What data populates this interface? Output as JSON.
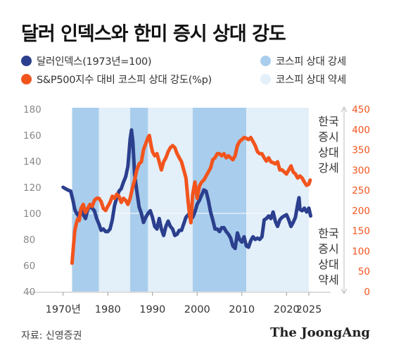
{
  "title": "달러 인덱스와 한미 증시 상대 강도",
  "legend": {
    "dollar_index": "달러인덱스(1973년=100)",
    "relative_strength": "S&P500지수 대비 코스피 상대 강도(%p)",
    "kospi_strong": "코스피 상대 강세",
    "kospi_weak": "코스피 상대 약세"
  },
  "right_annotation": {
    "top": [
      "한국",
      "증시",
      "상대",
      "강세"
    ],
    "bottom": [
      "한국",
      "증시",
      "상대",
      "약세"
    ]
  },
  "source": "자료: 신영증권",
  "brand": "The JoongAng",
  "colors": {
    "dollar_index": "#2b3f8e",
    "relative_strength": "#f2541d",
    "kospi_strong": "#a9cdec",
    "kospi_weak": "#e3eff9",
    "right_axis": "#f2541d",
    "left_axis": "#888888"
  },
  "chart_data": {
    "type": "line",
    "x_range": [
      1965,
      2028
    ],
    "x_ticks": [
      {
        "value": 1970,
        "label": "1970년"
      },
      {
        "value": 1980,
        "label": "1980"
      },
      {
        "value": 1990,
        "label": "1990"
      },
      {
        "value": 2000,
        "label": "2000"
      },
      {
        "value": 2010,
        "label": "2010"
      },
      {
        "value": 2020,
        "label": "2020"
      },
      {
        "value": 2025,
        "label": "2025"
      }
    ],
    "y_left": {
      "range": [
        40,
        180
      ],
      "ticks": [
        40,
        60,
        80,
        100,
        120,
        140,
        160,
        180
      ]
    },
    "y_right": {
      "range": [
        0,
        450
      ],
      "ticks": [
        0,
        50,
        100,
        150,
        200,
        250,
        300,
        350,
        400,
        450
      ]
    },
    "shaded_periods": [
      {
        "start": 1972,
        "end": 1978,
        "type": "kospi_strong"
      },
      {
        "start": 1978,
        "end": 1985,
        "type": "kospi_weak"
      },
      {
        "start": 1985,
        "end": 1989,
        "type": "kospi_strong"
      },
      {
        "start": 1989,
        "end": 1999,
        "type": "kospi_weak"
      },
      {
        "start": 1999,
        "end": 2011,
        "type": "kospi_strong"
      },
      {
        "start": 2011,
        "end": 2025,
        "type": "kospi_weak"
      }
    ],
    "series": [
      {
        "name": "달러인덱스(1973년=100)",
        "axis": "left",
        "points": [
          [
            1970.0,
            120
          ],
          [
            1971.0,
            118
          ],
          [
            1971.7,
            117
          ],
          [
            1972.2,
            110
          ],
          [
            1972.6,
            103
          ],
          [
            1973.0,
            100
          ],
          [
            1973.5,
            98
          ],
          [
            1974.0,
            103
          ],
          [
            1974.5,
            99
          ],
          [
            1975.0,
            96
          ],
          [
            1975.5,
            103
          ],
          [
            1976.0,
            105
          ],
          [
            1976.5,
            104
          ],
          [
            1977.0,
            102
          ],
          [
            1977.5,
            96
          ],
          [
            1978.0,
            92
          ],
          [
            1978.5,
            87
          ],
          [
            1979.0,
            88
          ],
          [
            1979.5,
            86
          ],
          [
            1980.0,
            86
          ],
          [
            1980.5,
            88
          ],
          [
            1981.0,
            95
          ],
          [
            1981.5,
            106
          ],
          [
            1982.0,
            112
          ],
          [
            1982.5,
            117
          ],
          [
            1983.0,
            119
          ],
          [
            1983.5,
            124
          ],
          [
            1984.0,
            128
          ],
          [
            1984.5,
            136
          ],
          [
            1985.0,
            157
          ],
          [
            1985.3,
            164
          ],
          [
            1985.6,
            155
          ],
          [
            1986.0,
            130
          ],
          [
            1986.5,
            117
          ],
          [
            1987.0,
            105
          ],
          [
            1987.5,
            100
          ],
          [
            1988.0,
            93
          ],
          [
            1988.5,
            97
          ],
          [
            1989.0,
            100
          ],
          [
            1989.5,
            102
          ],
          [
            1990.0,
            97
          ],
          [
            1990.5,
            90
          ],
          [
            1991.0,
            88
          ],
          [
            1991.5,
            96
          ],
          [
            1992.0,
            88
          ],
          [
            1992.5,
            83
          ],
          [
            1993.0,
            90
          ],
          [
            1993.5,
            94
          ],
          [
            1994.0,
            90
          ],
          [
            1994.5,
            88
          ],
          [
            1995.0,
            83
          ],
          [
            1995.5,
            84
          ],
          [
            1996.0,
            87
          ],
          [
            1996.5,
            87
          ],
          [
            1997.0,
            92
          ],
          [
            1997.5,
            97
          ],
          [
            1998.0,
            99
          ],
          [
            1998.5,
            98
          ],
          [
            1999.0,
            97
          ],
          [
            1999.5,
            101
          ],
          [
            2000.0,
            107
          ],
          [
            2000.5,
            110
          ],
          [
            2001.0,
            114
          ],
          [
            2001.5,
            118
          ],
          [
            2002.0,
            117
          ],
          [
            2002.5,
            110
          ],
          [
            2003.0,
            101
          ],
          [
            2003.5,
            95
          ],
          [
            2004.0,
            88
          ],
          [
            2004.5,
            88
          ],
          [
            2005.0,
            86
          ],
          [
            2005.5,
            89
          ],
          [
            2006.0,
            89
          ],
          [
            2006.5,
            86
          ],
          [
            2007.0,
            84
          ],
          [
            2007.5,
            81
          ],
          [
            2008.0,
            75
          ],
          [
            2008.5,
            73
          ],
          [
            2009.0,
            85
          ],
          [
            2009.5,
            80
          ],
          [
            2010.0,
            78
          ],
          [
            2010.5,
            82
          ],
          [
            2011.0,
            75
          ],
          [
            2011.5,
            74
          ],
          [
            2012.0,
            79
          ],
          [
            2012.5,
            82
          ],
          [
            2013.0,
            80
          ],
          [
            2013.5,
            81
          ],
          [
            2014.0,
            80
          ],
          [
            2014.5,
            82
          ],
          [
            2015.0,
            95
          ],
          [
            2015.5,
            96
          ],
          [
            2016.0,
            98
          ],
          [
            2016.5,
            96
          ],
          [
            2017.0,
            101
          ],
          [
            2017.5,
            94
          ],
          [
            2018.0,
            90
          ],
          [
            2018.5,
            95
          ],
          [
            2019.0,
            97
          ],
          [
            2019.5,
            98
          ],
          [
            2020.0,
            99
          ],
          [
            2020.5,
            95
          ],
          [
            2021.0,
            90
          ],
          [
            2021.5,
            93
          ],
          [
            2022.0,
            97
          ],
          [
            2022.5,
            107
          ],
          [
            2022.8,
            112
          ],
          [
            2023.0,
            103
          ],
          [
            2023.5,
            102
          ],
          [
            2024.0,
            104
          ],
          [
            2024.5,
            101
          ],
          [
            2025.0,
            104
          ],
          [
            2025.4,
            98
          ]
        ]
      },
      {
        "name": "S&P500지수 대비 코스피 상대 강도(%p)",
        "axis": "right",
        "points": [
          [
            1972.0,
            70
          ],
          [
            1972.3,
            110
          ],
          [
            1972.6,
            150
          ],
          [
            1973.0,
            170
          ],
          [
            1973.3,
            180
          ],
          [
            1973.6,
            175
          ],
          [
            1974.0,
            205
          ],
          [
            1974.5,
            215
          ],
          [
            1975.0,
            195
          ],
          [
            1975.5,
            205
          ],
          [
            1976.0,
            215
          ],
          [
            1976.5,
            210
          ],
          [
            1977.0,
            225
          ],
          [
            1977.5,
            230
          ],
          [
            1978.0,
            230
          ],
          [
            1978.5,
            222
          ],
          [
            1979.0,
            205
          ],
          [
            1979.5,
            200
          ],
          [
            1980.0,
            210
          ],
          [
            1980.5,
            220
          ],
          [
            1981.0,
            235
          ],
          [
            1981.5,
            230
          ],
          [
            1982.0,
            240
          ],
          [
            1982.5,
            235
          ],
          [
            1983.0,
            220
          ],
          [
            1983.5,
            230
          ],
          [
            1984.0,
            225
          ],
          [
            1984.5,
            215
          ],
          [
            1985.0,
            230
          ],
          [
            1985.5,
            255
          ],
          [
            1986.0,
            275
          ],
          [
            1986.5,
            300
          ],
          [
            1987.0,
            315
          ],
          [
            1987.5,
            320
          ],
          [
            1988.0,
            350
          ],
          [
            1988.5,
            365
          ],
          [
            1989.0,
            380
          ],
          [
            1989.3,
            385
          ],
          [
            1989.7,
            360
          ],
          [
            1990.0,
            345
          ],
          [
            1990.5,
            335
          ],
          [
            1991.0,
            340
          ],
          [
            1991.5,
            320
          ],
          [
            1992.0,
            300
          ],
          [
            1992.5,
            320
          ],
          [
            1993.0,
            330
          ],
          [
            1993.5,
            345
          ],
          [
            1994.0,
            355
          ],
          [
            1994.5,
            360
          ],
          [
            1995.0,
            355
          ],
          [
            1995.5,
            340
          ],
          [
            1996.0,
            330
          ],
          [
            1996.5,
            320
          ],
          [
            1997.0,
            300
          ],
          [
            1997.5,
            280
          ],
          [
            1998.0,
            220
          ],
          [
            1998.3,
            190
          ],
          [
            1998.6,
            170
          ],
          [
            1999.0,
            240
          ],
          [
            1999.5,
            270
          ],
          [
            2000.0,
            230
          ],
          [
            2000.5,
            260
          ],
          [
            2001.0,
            270
          ],
          [
            2001.5,
            275
          ],
          [
            2002.0,
            285
          ],
          [
            2002.5,
            295
          ],
          [
            2003.0,
            305
          ],
          [
            2003.5,
            325
          ],
          [
            2004.0,
            330
          ],
          [
            2004.5,
            340
          ],
          [
            2005.0,
            340
          ],
          [
            2005.5,
            335
          ],
          [
            2006.0,
            340
          ],
          [
            2006.5,
            330
          ],
          [
            2007.0,
            335
          ],
          [
            2007.5,
            330
          ],
          [
            2008.0,
            325
          ],
          [
            2008.5,
            335
          ],
          [
            2009.0,
            360
          ],
          [
            2009.5,
            370
          ],
          [
            2010.0,
            375
          ],
          [
            2010.5,
            380
          ],
          [
            2011.0,
            378
          ],
          [
            2011.5,
            375
          ],
          [
            2012.0,
            380
          ],
          [
            2012.5,
            370
          ],
          [
            2013.0,
            360
          ],
          [
            2013.5,
            345
          ],
          [
            2014.0,
            340
          ],
          [
            2014.5,
            340
          ],
          [
            2015.0,
            330
          ],
          [
            2015.5,
            322
          ],
          [
            2016.0,
            330
          ],
          [
            2016.5,
            320
          ],
          [
            2017.0,
            318
          ],
          [
            2017.5,
            315
          ],
          [
            2018.0,
            320
          ],
          [
            2018.5,
            300
          ],
          [
            2019.0,
            300
          ],
          [
            2019.5,
            295
          ],
          [
            2020.0,
            290
          ],
          [
            2020.5,
            300
          ],
          [
            2021.0,
            310
          ],
          [
            2021.5,
            295
          ],
          [
            2022.0,
            290
          ],
          [
            2022.5,
            280
          ],
          [
            2023.0,
            285
          ],
          [
            2023.5,
            280
          ],
          [
            2024.0,
            270
          ],
          [
            2024.5,
            262
          ],
          [
            2025.0,
            265
          ],
          [
            2025.3,
            275
          ]
        ]
      }
    ]
  }
}
